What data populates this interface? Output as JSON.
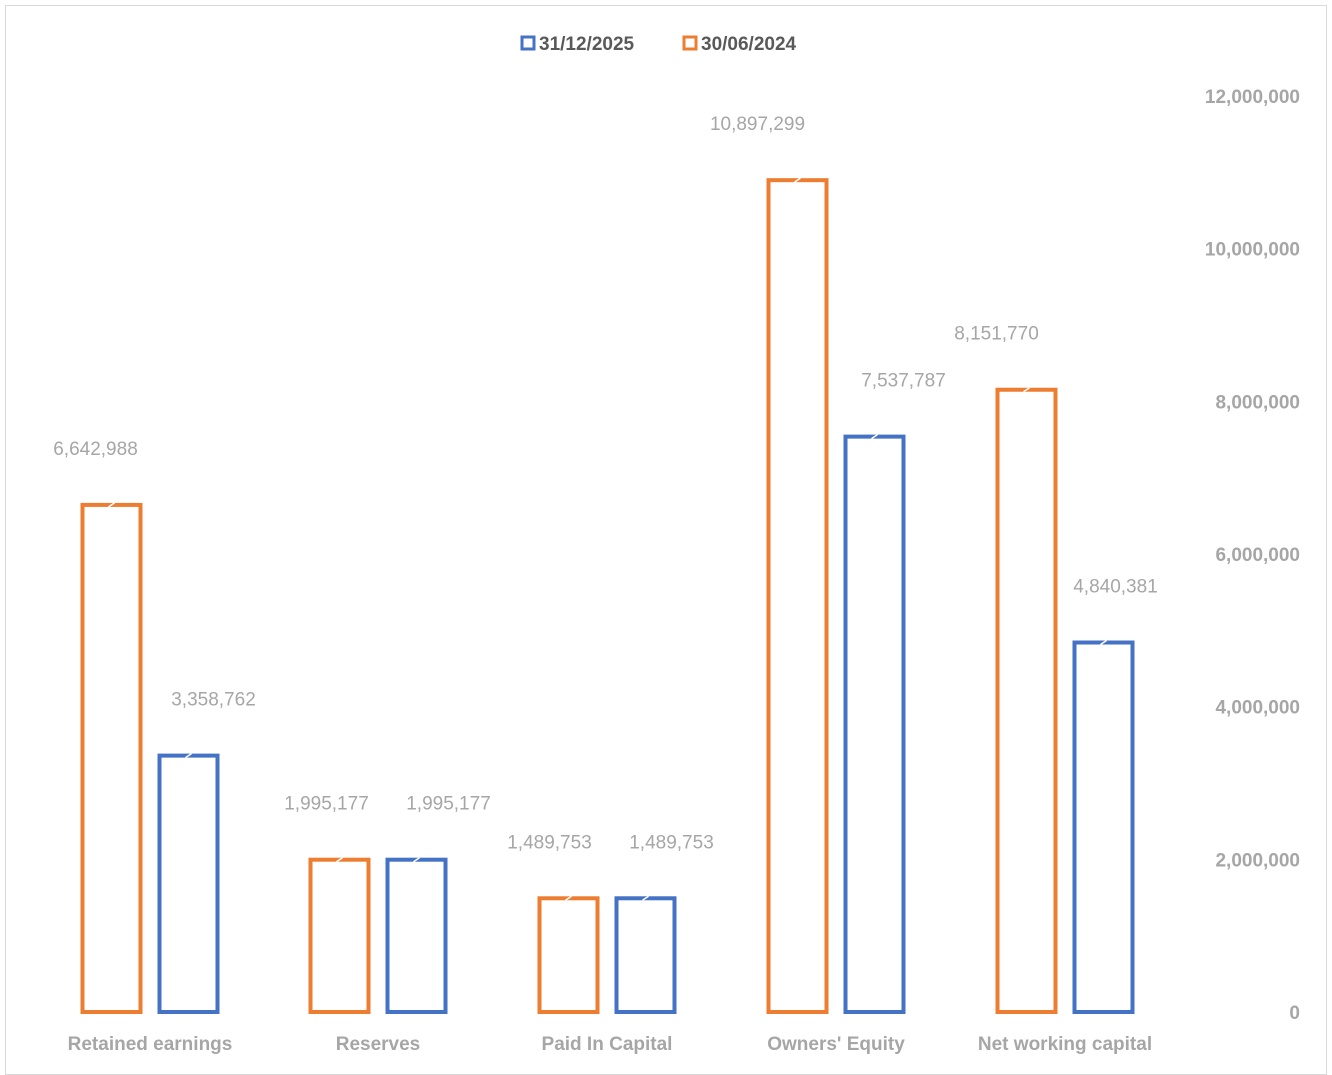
{
  "chart_data": {
    "type": "bar",
    "categories": [
      "Retained earnings",
      "Reserves",
      "Paid In Capital",
      "Owners' Equity",
      "Net working capital"
    ],
    "series": [
      {
        "name": "30/06/2024",
        "color": "#ED7D31",
        "values": [
          6642988,
          1995177,
          1489753,
          10897299,
          8151770
        ],
        "labels": [
          "6,642,988",
          "1,995,177",
          "1,489,753",
          "10,897,299",
          "8,151,770"
        ]
      },
      {
        "name": "31/12/2025",
        "color": "#4472C4",
        "values": [
          3358762,
          1995177,
          1489753,
          7537787,
          4840381
        ],
        "labels": [
          "3,358,762",
          "1,995,177",
          "1,489,753",
          "7,537,787",
          "4,840,381"
        ]
      }
    ],
    "legend": [
      {
        "name": "31/12/2025",
        "color": "#4472C4"
      },
      {
        "name": "30/06/2024",
        "color": "#ED7D31"
      }
    ],
    "y_ticks": [
      "0",
      "2,000,000",
      "4,000,000",
      "6,000,000",
      "8,000,000",
      "10,000,000",
      "12,000,000"
    ],
    "ylim": [
      0,
      12000000
    ],
    "y_axis_position": "right",
    "legend_position": "top",
    "grid": false,
    "title": "",
    "xlabel": "",
    "ylabel": ""
  }
}
